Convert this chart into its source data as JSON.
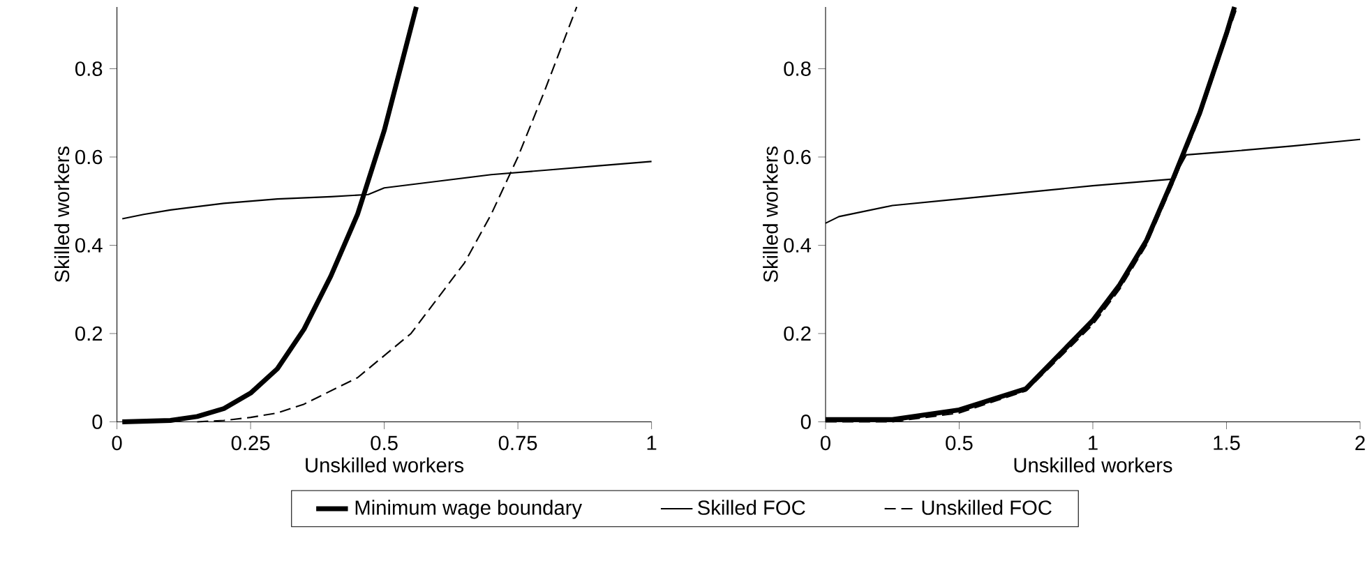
{
  "chart_data": [
    {
      "type": "line",
      "xlabel": "Unskilled workers",
      "ylabel": "Skilled workers",
      "xlim": [
        0,
        1
      ],
      "ylim": [
        0,
        0.94
      ],
      "xticks": [
        0,
        0.25,
        0.5,
        0.75,
        1
      ],
      "yticks": [
        0,
        0.2,
        0.4,
        0.6,
        0.8
      ],
      "legend": "bottom",
      "series": [
        {
          "name": "Minimum wage boundary",
          "color": "#000000",
          "line_style": "solid",
          "x": [
            0.01,
            0.1,
            0.15,
            0.2,
            0.25,
            0.3,
            0.35,
            0.4,
            0.45,
            0.5,
            0.56
          ],
          "values": [
            0,
            0.003,
            0.012,
            0.03,
            0.065,
            0.12,
            0.21,
            0.33,
            0.47,
            0.66,
            0.94
          ]
        },
        {
          "name": "Skilled FOC",
          "color": "#000000",
          "line_style": "solid",
          "x": [
            0.01,
            0.05,
            0.1,
            0.2,
            0.3,
            0.4,
            0.47,
            0.5,
            0.6,
            0.7,
            0.8,
            0.9,
            1
          ],
          "values": [
            0.46,
            0.47,
            0.48,
            0.495,
            0.505,
            0.51,
            0.515,
            0.53,
            0.545,
            0.56,
            0.57,
            0.58,
            0.59
          ]
        },
        {
          "name": "Unskilled FOC",
          "color": "#000000",
          "line_style": "dashed",
          "x": [
            0.15,
            0.2,
            0.25,
            0.3,
            0.35,
            0.4,
            0.45,
            0.5,
            0.55,
            0.6,
            0.65,
            0.7,
            0.75,
            0.8,
            0.86
          ],
          "values": [
            0,
            0.003,
            0.01,
            0.02,
            0.04,
            0.07,
            0.1,
            0.15,
            0.2,
            0.28,
            0.36,
            0.47,
            0.6,
            0.75,
            0.94
          ]
        }
      ]
    },
    {
      "type": "line",
      "xlabel": "Unskilled workers",
      "ylabel": "Skilled workers",
      "xlim": [
        0,
        2
      ],
      "ylim": [
        0,
        0.94
      ],
      "xticks": [
        0,
        0.5,
        1,
        1.5,
        2
      ],
      "yticks": [
        0,
        0.2,
        0.4,
        0.6,
        0.8
      ],
      "series": [
        {
          "color": "#000000",
          "line_style": "solid",
          "x": [
            0,
            0.25,
            0.5,
            0.75,
            1,
            1.1,
            1.2,
            1.3,
            1.4,
            1.5,
            1.53
          ],
          "values": [
            0.005,
            0.005,
            0.027,
            0.075,
            0.23,
            0.31,
            0.41,
            0.55,
            0.7,
            0.88,
            0.94
          ]
        },
        {
          "color": "#000000",
          "line_style": "solid",
          "x": [
            0,
            0.05,
            0.25,
            0.5,
            0.75,
            1,
            1.3,
            1.35,
            1.5,
            1.75,
            2
          ],
          "values": [
            0.45,
            0.465,
            0.49,
            0.505,
            0.52,
            0.535,
            0.55,
            0.605,
            0.612,
            0.625,
            0.64
          ]
        },
        {
          "color": "#000000",
          "line_style": "dashed",
          "x": [
            0,
            0.25,
            0.5,
            0.75,
            1,
            1.1,
            1.2,
            1.3,
            1.4,
            1.5,
            1.54
          ],
          "values": [
            0,
            0,
            0.02,
            0.07,
            0.22,
            0.3,
            0.4,
            0.54,
            0.69,
            0.87,
            0.94
          ]
        }
      ]
    }
  ]
}
